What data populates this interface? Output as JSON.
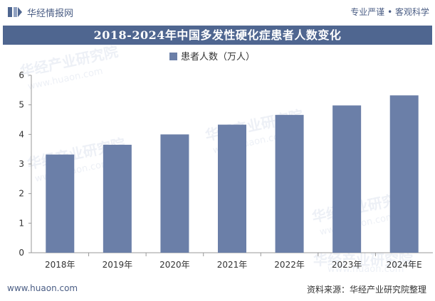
{
  "header": {
    "brand": "华经情报网",
    "tagline": "专业严谨 • 客观科学"
  },
  "footer": {
    "website": "www.huaon.com",
    "source": "资料来源：华经产业研究院整理"
  },
  "watermark": {
    "text": "华经产业研究院",
    "url": "www.huaon.com"
  },
  "colors": {
    "bar": "#6b7fa8",
    "title_bg": "#4f6690",
    "brand": "#4a5d84"
  },
  "chart_data": {
    "type": "bar",
    "title": "2018-2024年中国多发性硬化症患者人数变化",
    "legend_position": "top-center",
    "grid": false,
    "categories": [
      "2018年",
      "2019年",
      "2020年",
      "2021年",
      "2022年",
      "2023年",
      "2024年E"
    ],
    "series": [
      {
        "name": "患者人数（万人）",
        "values": [
          3.32,
          3.65,
          4.0,
          4.33,
          4.66,
          4.98,
          5.32
        ]
      }
    ],
    "yticks": [
      "0",
      "1",
      "2",
      "3",
      "4",
      "5",
      "6"
    ],
    "ylim": [
      0,
      6
    ]
  }
}
